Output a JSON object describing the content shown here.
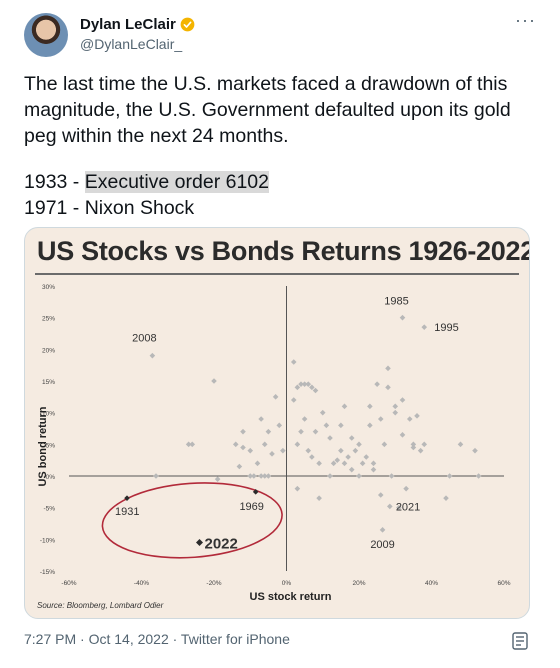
{
  "tweet": {
    "author_name": "Dylan LeClair",
    "author_handle": "@DylanLeClair_",
    "more_glyph": "···",
    "text": "The last time the U.S. markets faced a drawdown of this magnitude, the U.S. Government defaulted upon its gold peg within the next 24 months.",
    "line1_prefix": "1933 - ",
    "line1_highlight": "Executive order 6102",
    "line2": "1971 - Nixon Shock",
    "timestamp": "7:27 PM · Oct 14, 2022 · Twitter for iPhone"
  },
  "colors": {
    "badge": "#f4b400",
    "chart_bg": "#f5ebe1",
    "points": "#b8b8b8",
    "highlight": "#2b2b2b",
    "ellipse": "#b22a3a"
  },
  "icons": {
    "verified": "verified-badge-icon",
    "more": "more-icon",
    "share": "share-icon"
  },
  "chart_data": {
    "type": "scatter",
    "title": "US Stocks vs Bonds Returns 1926-2022",
    "xlabel": "US stock return",
    "ylabel": "US bond return",
    "source": "Source: Bloomberg, Lombard Odier",
    "xlim": [
      -60,
      60
    ],
    "ylim": [
      -15,
      30
    ],
    "xticks": [
      "-60%",
      "-40%",
      "-20%",
      "0%",
      "20%",
      "40%",
      "60%"
    ],
    "yticks": [
      "30%",
      "25%",
      "20%",
      "15%",
      "10%",
      "5%",
      "0%",
      "-5%",
      "-10%",
      "-15%"
    ],
    "labeled_points": [
      {
        "label": "1985",
        "x": 32,
        "y": 25,
        "style": "normal"
      },
      {
        "label": "1995",
        "x": 38,
        "y": 23.5,
        "style": "normal"
      },
      {
        "label": "2008",
        "x": -37,
        "y": 19,
        "style": "normal"
      },
      {
        "label": "1931",
        "x": -44,
        "y": -3.5,
        "style": "dark"
      },
      {
        "label": "1969",
        "x": -8.5,
        "y": -2.5,
        "style": "dark"
      },
      {
        "label": "2022",
        "x": -24,
        "y": -10.5,
        "style": "emphasis"
      },
      {
        "label": "2021",
        "x": 28.5,
        "y": -4.8,
        "style": "normal"
      },
      {
        "label": "2009",
        "x": 26.5,
        "y": -8.5,
        "style": "normal"
      }
    ],
    "points": [
      [
        -20,
        15
      ],
      [
        -26,
        5
      ],
      [
        -27,
        5
      ],
      [
        -36,
        0
      ],
      [
        -10,
        0
      ],
      [
        -13,
        1.5
      ],
      [
        -12,
        4.5
      ],
      [
        -12,
        7
      ],
      [
        -14,
        5
      ],
      [
        -10,
        4
      ],
      [
        -9,
        0
      ],
      [
        -8,
        2
      ],
      [
        -7,
        0
      ],
      [
        -6,
        0
      ],
      [
        -5,
        0
      ],
      [
        -4,
        3.5
      ],
      [
        -7,
        9
      ],
      [
        -6,
        5
      ],
      [
        -5,
        7
      ],
      [
        -3,
        12.5
      ],
      [
        -2,
        8
      ],
      [
        -1,
        4
      ],
      [
        2,
        18
      ],
      [
        3,
        14
      ],
      [
        4,
        14.5
      ],
      [
        5,
        14.5
      ],
      [
        6,
        14.5
      ],
      [
        7,
        14
      ],
      [
        8,
        13.5
      ],
      [
        2,
        12
      ],
      [
        3,
        5
      ],
      [
        4,
        7
      ],
      [
        5,
        9
      ],
      [
        6,
        4
      ],
      [
        7,
        3
      ],
      [
        8,
        7
      ],
      [
        9,
        2
      ],
      [
        10,
        10
      ],
      [
        11,
        8
      ],
      [
        12,
        6
      ],
      [
        12,
        0
      ],
      [
        13,
        2
      ],
      [
        14,
        2.5
      ],
      [
        15,
        8
      ],
      [
        15,
        4
      ],
      [
        16,
        11
      ],
      [
        16,
        2
      ],
      [
        17,
        3
      ],
      [
        18,
        1
      ],
      [
        18,
        6
      ],
      [
        19,
        4
      ],
      [
        20,
        5
      ],
      [
        20,
        0
      ],
      [
        21,
        2
      ],
      [
        22,
        3
      ],
      [
        23,
        11
      ],
      [
        23,
        8
      ],
      [
        24,
        2
      ],
      [
        24,
        1
      ],
      [
        25,
        14.5
      ],
      [
        26,
        -3
      ],
      [
        26,
        9
      ],
      [
        27,
        5
      ],
      [
        28,
        17
      ],
      [
        28,
        14
      ],
      [
        29,
        0
      ],
      [
        30,
        11
      ],
      [
        30,
        10
      ],
      [
        31,
        -5
      ],
      [
        32,
        6.5
      ],
      [
        32,
        12
      ],
      [
        33,
        -2
      ],
      [
        34,
        9
      ],
      [
        35,
        5
      ],
      [
        35,
        4.5
      ],
      [
        36,
        9.5
      ],
      [
        37,
        4
      ],
      [
        38,
        5
      ],
      [
        45,
        0
      ],
      [
        48,
        5
      ],
      [
        52,
        4
      ],
      [
        53,
        0
      ],
      [
        44,
        -3.5
      ],
      [
        9,
        -3.5
      ],
      [
        3,
        -2
      ],
      [
        -19,
        -0.5
      ]
    ]
  }
}
